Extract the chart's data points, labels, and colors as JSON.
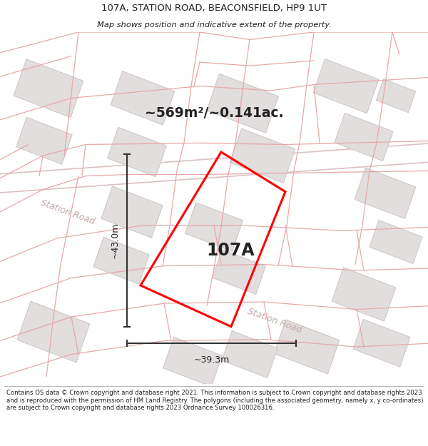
{
  "title": "107A, STATION ROAD, BEACONSFIELD, HP9 1UT",
  "subtitle": "Map shows position and indicative extent of the property.",
  "area_text": "~569m²/~0.141ac.",
  "label_107A": "107A",
  "dim_height": "~43.0m",
  "dim_width": "~39.3m",
  "footer": "Contains OS data © Crown copyright and database right 2021. This information is subject to Crown copyright and database rights 2023 and is reproduced with the permission of HM Land Registry. The polygons (including the associated geometry, namely x, y co-ordinates) are subject to Crown copyright and database rights 2023 Ordnance Survey 100026316.",
  "map_bg": "#f9f7f7",
  "building_fill": "#e2dede",
  "building_edge": "#ccc5c5",
  "cadastral_color": "#e8a8a8",
  "highlight_color": "#ff0000",
  "dim_line_color": "#333333",
  "road_label_color": "#c0aaaa",
  "title_color": "#222222",
  "footer_color": "#222222",
  "white": "#ffffff"
}
